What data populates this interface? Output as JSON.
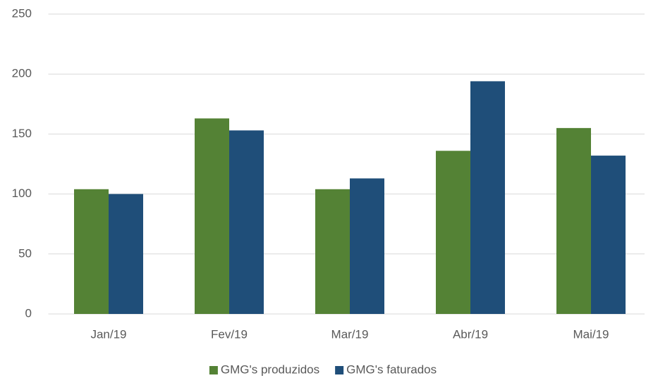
{
  "chart_data": {
    "type": "bar",
    "categories": [
      "Jan/19",
      "Fev/19",
      "Mar/19",
      "Abr/19",
      "Mai/19"
    ],
    "series": [
      {
        "name": "GMG's produzidos",
        "color": "#548235",
        "values": [
          104,
          163,
          104,
          136,
          155
        ]
      },
      {
        "name": "GMG's faturados",
        "color": "#1f4e79",
        "values": [
          100,
          153,
          113,
          194,
          132
        ]
      }
    ],
    "ylim": [
      0,
      250
    ],
    "yticks": [
      0,
      50,
      100,
      150,
      200,
      250
    ],
    "grid": true,
    "legend": "bottom"
  }
}
